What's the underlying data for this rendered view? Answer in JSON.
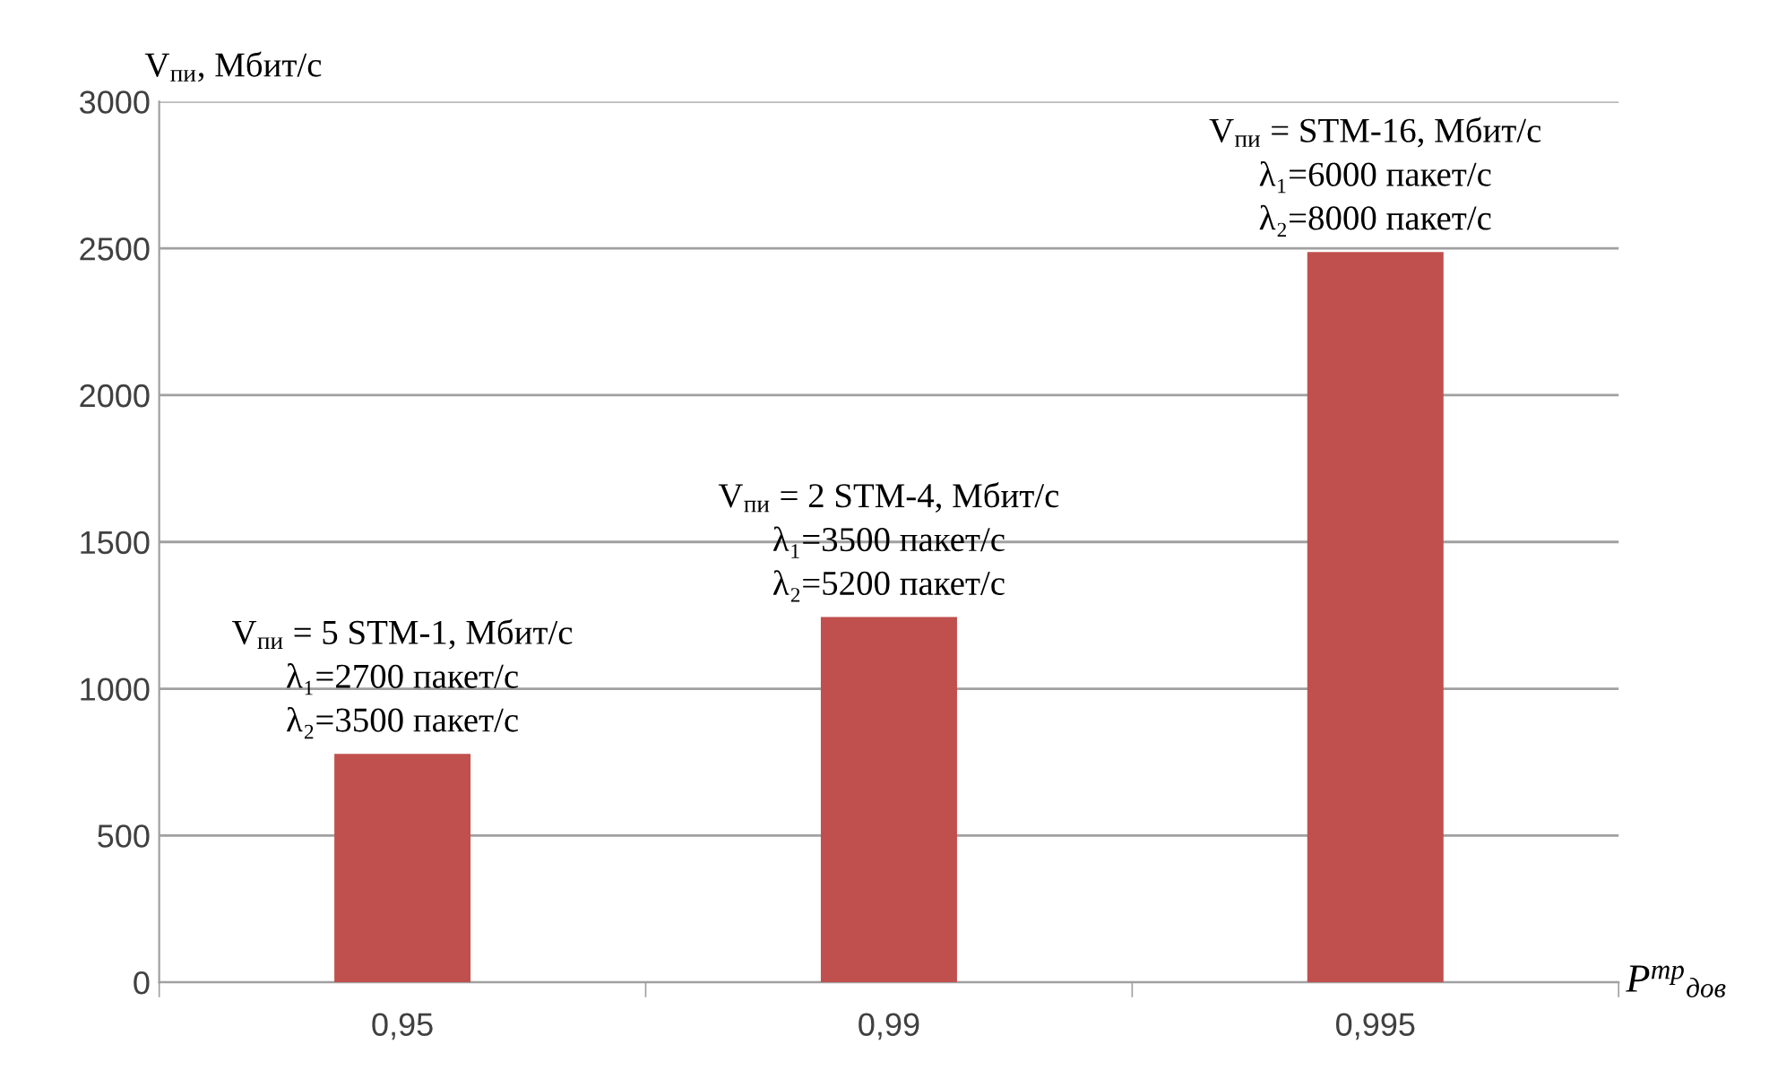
{
  "chart_data": {
    "type": "bar",
    "categories": [
      "0,95",
      "0,99",
      "0,995"
    ],
    "values": [
      778,
      1244,
      2488
    ],
    "color": "#c0504d",
    "ylabel": "V$_{пи}$, Мбит/с",
    "xlabel": "P$^{тр}$$_{дов}$",
    "ylim": [
      0,
      3000
    ],
    "yticks": [
      0,
      500,
      1000,
      1500,
      2000,
      2500,
      3000
    ],
    "grid": "y",
    "annotations": [
      {
        "text": "V$_{пи}$ = 5 STM-1, Мбит/с\nλ₁=2700 пакет/с\nλ₂=3500 пакет/с",
        "x": "0,95",
        "y": 778
      },
      {
        "text": "V$_{пи}$ = 2 STM-4, Мбит/с\nλ₁=3500 пакет/с\nλ₂=5200 пакет/с",
        "x": "0,99",
        "y": 1244
      },
      {
        "text": "V$_{пи}$ = STM-16, Мбит/с\nλ₁=6000 пакет/с\nλ₂=8000 пакет/с",
        "x": "0,995",
        "y": 2488
      }
    ]
  }
}
